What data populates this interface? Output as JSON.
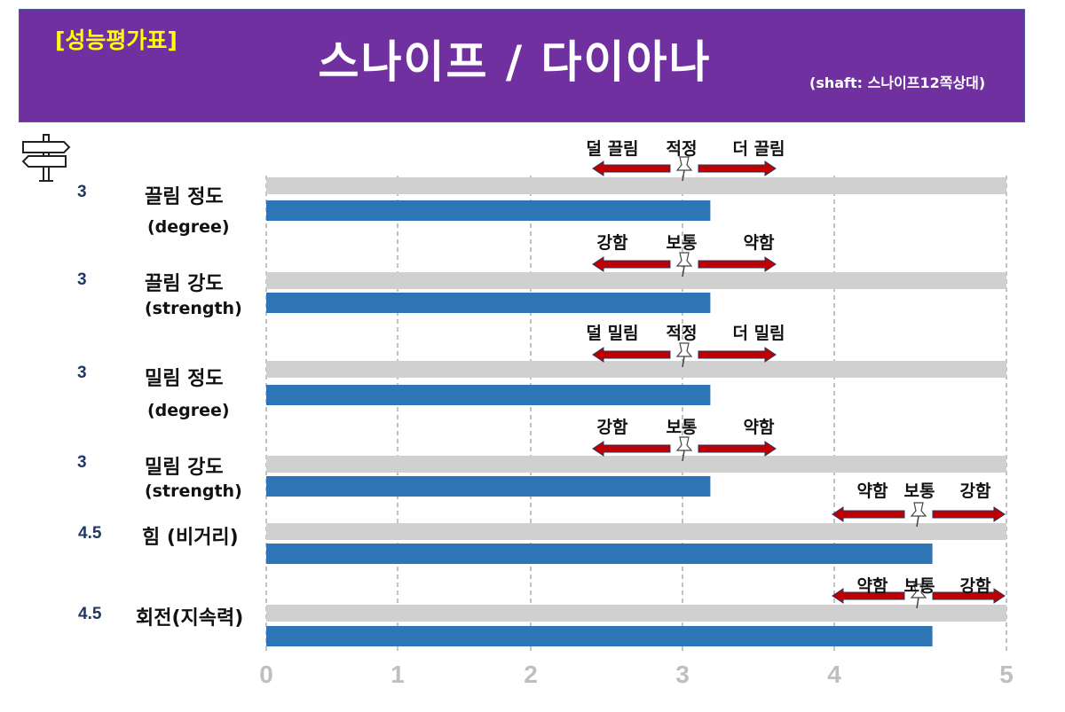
{
  "header": {
    "badge": "[성능평가표]",
    "title": "스나이프 / 다이아나",
    "subtitle": "(shaft: 스나이프12쪽상대)"
  },
  "icon": "signpost-icon",
  "colors": {
    "header_bg": "#7030a0",
    "badge": "#ffff00",
    "track": "#d0d0d0",
    "bar": "#2e75b6",
    "arrow": "#c00000",
    "score": "#1f3864",
    "tick": "#bfbfbf"
  },
  "chart_data": {
    "type": "bar",
    "orientation": "horizontal",
    "xlim": [
      0,
      5
    ],
    "x_ticks": [
      "0",
      "1",
      "2",
      "3",
      "4",
      "5"
    ],
    "grid": true,
    "categories": [
      {
        "label": "끌림 정도",
        "sublabel": "(degree)",
        "score_text": "3",
        "value": 3,
        "annotations": {
          "left": "덜 끌림",
          "center": "적정",
          "right": "더 끌림"
        }
      },
      {
        "label": "끌림 강도",
        "sublabel": "(strength)",
        "score_text": "3",
        "value": 3,
        "annotations": {
          "left": "강함",
          "center": "보통",
          "right": "약함"
        }
      },
      {
        "label": "밀림 정도",
        "sublabel": "(degree)",
        "score_text": "3",
        "value": 3,
        "annotations": {
          "left": "덜 밀림",
          "center": "적정",
          "right": "더 밀림"
        }
      },
      {
        "label": "밀림 강도",
        "sublabel": "(strength)",
        "score_text": "3",
        "value": 3,
        "annotations": {
          "left": "강함",
          "center": "보통",
          "right": "약함"
        }
      },
      {
        "label": "힘 (비거리)",
        "sublabel": "",
        "score_text": "4.5",
        "value": 4.5,
        "annotations": {
          "left": "약함",
          "center": "보통",
          "right": "강함"
        }
      },
      {
        "label": "회전(지속력)",
        "sublabel": "",
        "score_text": "4.5",
        "value": 4.5,
        "annotations": {
          "left": "약함",
          "center": "보통",
          "right": "강함"
        }
      }
    ]
  }
}
